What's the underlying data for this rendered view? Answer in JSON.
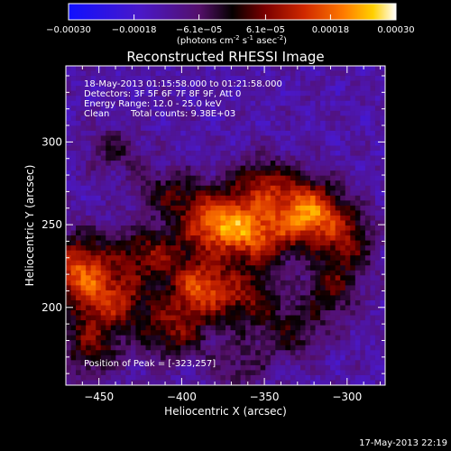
{
  "chart_data": {
    "type": "heatmap",
    "title": "Reconstructed RHESSI Image",
    "xlabel": "Heliocentric X (arcsec)",
    "ylabel": "Heliocentric Y (arcsec)",
    "xlim": [
      -470,
      -277
    ],
    "ylim": [
      153,
      346
    ],
    "x_ticks": [
      -450,
      -400,
      -350,
      -300
    ],
    "y_ticks": [
      200,
      250,
      300
    ],
    "colorbar": {
      "min": -0.0003,
      "max": 0.0003,
      "tick_values": [
        -0.0003,
        -0.00018,
        -6.1e-05,
        6.1e-05,
        0.00018,
        0.0003
      ],
      "tick_labels": [
        "-0.00030",
        "-0.00018",
        "-6.1e-05",
        "6.1e-05",
        "0.00018",
        "0.00030"
      ],
      "unit_prefix": "(photons cm",
      "unit_exp1": "-2",
      "unit_mid": " s",
      "unit_exp2": "-1",
      "unit_mid2": " asec",
      "unit_exp3": "-2",
      "unit_suffix": ")"
    },
    "sources": [
      {
        "x": -378,
        "y": 251,
        "sigma_x": 16,
        "sigma_y": 13,
        "amp": 1.0
      },
      {
        "x": -323,
        "y": 257,
        "sigma_x": 14,
        "sigma_y": 13,
        "amp": 1.0
      },
      {
        "x": -462,
        "y": 222,
        "sigma_x": 13,
        "sigma_y": 15,
        "amp": 0.85
      },
      {
        "x": -388,
        "y": 212,
        "sigma_x": 13,
        "sigma_y": 12,
        "amp": 0.8
      },
      {
        "x": -352,
        "y": 243,
        "sigma_x": 14,
        "sigma_y": 14,
        "amp": 0.65
      },
      {
        "x": -350,
        "y": 275,
        "sigma_x": 14,
        "sigma_y": 11,
        "amp": 0.55
      },
      {
        "x": -420,
        "y": 232,
        "sigma_x": 16,
        "sigma_y": 12,
        "amp": 0.55
      },
      {
        "x": -440,
        "y": 205,
        "sigma_x": 14,
        "sigma_y": 12,
        "amp": 0.6
      },
      {
        "x": -455,
        "y": 178,
        "sigma_x": 13,
        "sigma_y": 14,
        "amp": 0.5
      },
      {
        "x": -405,
        "y": 187,
        "sigma_x": 15,
        "sigma_y": 13,
        "amp": 0.55
      },
      {
        "x": -360,
        "y": 205,
        "sigma_x": 13,
        "sigma_y": 13,
        "amp": 0.5
      },
      {
        "x": -310,
        "y": 210,
        "sigma_x": 12,
        "sigma_y": 12,
        "amp": 0.45
      },
      {
        "x": -300,
        "y": 240,
        "sigma_x": 12,
        "sigma_y": 14,
        "amp": 0.5
      },
      {
        "x": -333,
        "y": 185,
        "sigma_x": 14,
        "sigma_y": 12,
        "amp": 0.38
      },
      {
        "x": -408,
        "y": 270,
        "sigma_x": 14,
        "sigma_y": 10,
        "amp": 0.38
      },
      {
        "x": -440,
        "y": 295,
        "sigma_x": 12,
        "sigma_y": 10,
        "amp": 0.3
      },
      {
        "x": -365,
        "y": 165,
        "sigma_x": 12,
        "sigma_y": 10,
        "amp": 0.28
      }
    ]
  },
  "annotations": {
    "time_range": "18-May-2013 01:15:58.000 to 01:21:58.000",
    "detectors": "Detectors: 3F 5F 6F 7F 8F 9F, Att 0",
    "energy": "Energy Range: 12.0 - 25.0 keV",
    "clean_label": "Clean",
    "total_counts": "Total counts: 9.38E+03",
    "peak": "Position of Peak = [-323,257]"
  },
  "footer": {
    "timestamp": "17-May-2013 22:19"
  },
  "colors": {
    "background": "#000000",
    "text": "#ffffff"
  }
}
